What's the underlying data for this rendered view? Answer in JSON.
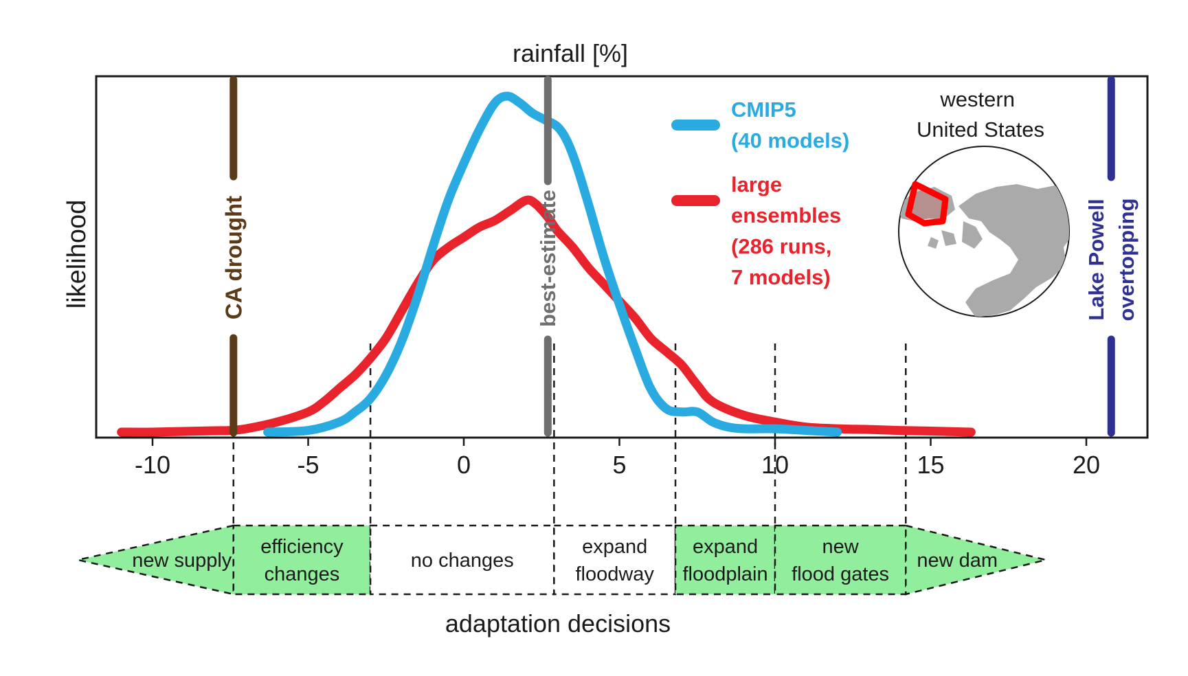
{
  "colors": {
    "cmip5": "#29abe2",
    "large_ensembles": "#e8232b",
    "ca_drought": "#5b3a17",
    "best_estimate": "#6e6e6e",
    "lake_powell": "#2e3192",
    "decision_fill": "#90ee9c",
    "land": "#a9aaa9",
    "region_outline": "#ff0000"
  },
  "chart_data": {
    "type": "line",
    "title": "rainfall [%]",
    "xlabel": "adaptation decisions",
    "ylabel": "likelihood",
    "xlim": [
      -12,
      22
    ],
    "ylim": [
      0,
      1.05
    ],
    "xticks": [
      -10,
      -5,
      0,
      5,
      10,
      15,
      20
    ],
    "series": [
      {
        "name": "CMIP5",
        "label_lines": [
          "CMIP5",
          "(40 models)"
        ],
        "color_key": "cmip5",
        "x": [
          -6.3,
          -5,
          -4,
          -3.5,
          -3,
          -2.5,
          -2,
          -1.5,
          -1,
          -0.5,
          0,
          0.5,
          1.0,
          1.4,
          1.8,
          2.2,
          2.6,
          3.0,
          3.3,
          3.6,
          4.0,
          4.5,
          5.0,
          5.5,
          6.0,
          6.5,
          7.0,
          7.5,
          8.0,
          8.5,
          9.0,
          10.0,
          11.0,
          12.0
        ],
        "y": [
          0.0,
          0.005,
          0.03,
          0.06,
          0.1,
          0.17,
          0.27,
          0.4,
          0.55,
          0.69,
          0.8,
          0.9,
          0.98,
          1.0,
          0.98,
          0.95,
          0.93,
          0.91,
          0.87,
          0.8,
          0.68,
          0.52,
          0.38,
          0.25,
          0.13,
          0.07,
          0.06,
          0.06,
          0.03,
          0.015,
          0.01,
          0.01,
          0.005,
          0.0
        ]
      },
      {
        "name": "large ensembles",
        "label_lines": [
          "large",
          "ensembles",
          "(286 runs,",
          "7 models)"
        ],
        "color_key": "large_ensembles",
        "x": [
          -11,
          -10,
          -9,
          -8,
          -7.5,
          -7,
          -6,
          -5,
          -4.5,
          -4,
          -3.5,
          -3,
          -2.5,
          -2,
          -1.5,
          -1,
          -0.5,
          0,
          0.5,
          1.0,
          1.5,
          2.0,
          2.3,
          2.7,
          3.0,
          3.5,
          4.0,
          4.5,
          5.0,
          5.5,
          6.0,
          6.5,
          7.0,
          7.5,
          8.0,
          9.0,
          10.0,
          11.0,
          12.0,
          13.0,
          14.0,
          15.0,
          16.3
        ],
        "y": [
          0.0,
          0.0,
          0.002,
          0.004,
          0.005,
          0.01,
          0.03,
          0.06,
          0.09,
          0.13,
          0.17,
          0.22,
          0.28,
          0.36,
          0.44,
          0.51,
          0.55,
          0.58,
          0.61,
          0.63,
          0.66,
          0.69,
          0.68,
          0.64,
          0.6,
          0.55,
          0.49,
          0.44,
          0.39,
          0.34,
          0.28,
          0.24,
          0.2,
          0.14,
          0.09,
          0.05,
          0.03,
          0.015,
          0.01,
          0.008,
          0.005,
          0.003,
          0.0
        ]
      }
    ],
    "markers": [
      {
        "name": "CA drought",
        "x": -7.4,
        "color_key": "ca_drought"
      },
      {
        "name": "best-estimate",
        "x": 2.7,
        "color_key": "best_estimate"
      },
      {
        "name": "Lake Powell overtopping",
        "label_lines": [
          "Lake Powell",
          "overtopping"
        ],
        "x": 20.8,
        "color_key": "lake_powell"
      }
    ],
    "thresholds": [
      -7.4,
      -3,
      2.9,
      6.8,
      10,
      14.2
    ],
    "decisions": [
      {
        "label_lines": [
          "new supply"
        ],
        "from": -12.4,
        "to": -7.4,
        "filled": true,
        "shape": "arrow-left"
      },
      {
        "label_lines": [
          "efficiency",
          "changes"
        ],
        "from": -7.4,
        "to": -3,
        "filled": true,
        "shape": "box"
      },
      {
        "label_lines": [
          "no changes"
        ],
        "from": -3,
        "to": 2.9,
        "filled": false,
        "shape": "box"
      },
      {
        "label_lines": [
          "expand",
          "floodway"
        ],
        "from": 2.9,
        "to": 6.8,
        "filled": false,
        "shape": "box"
      },
      {
        "label_lines": [
          "expand",
          "floodplain"
        ],
        "from": 6.8,
        "to": 10,
        "filled": true,
        "shape": "box"
      },
      {
        "label_lines": [
          "new",
          "flood gates"
        ],
        "from": 10,
        "to": 14.2,
        "filled": true,
        "shape": "box"
      },
      {
        "label_lines": [
          "new dam"
        ],
        "from": 14.2,
        "to": 18.7,
        "filled": true,
        "shape": "arrow-right"
      }
    ],
    "inset": {
      "title_lines": [
        "western",
        "United States"
      ]
    }
  }
}
